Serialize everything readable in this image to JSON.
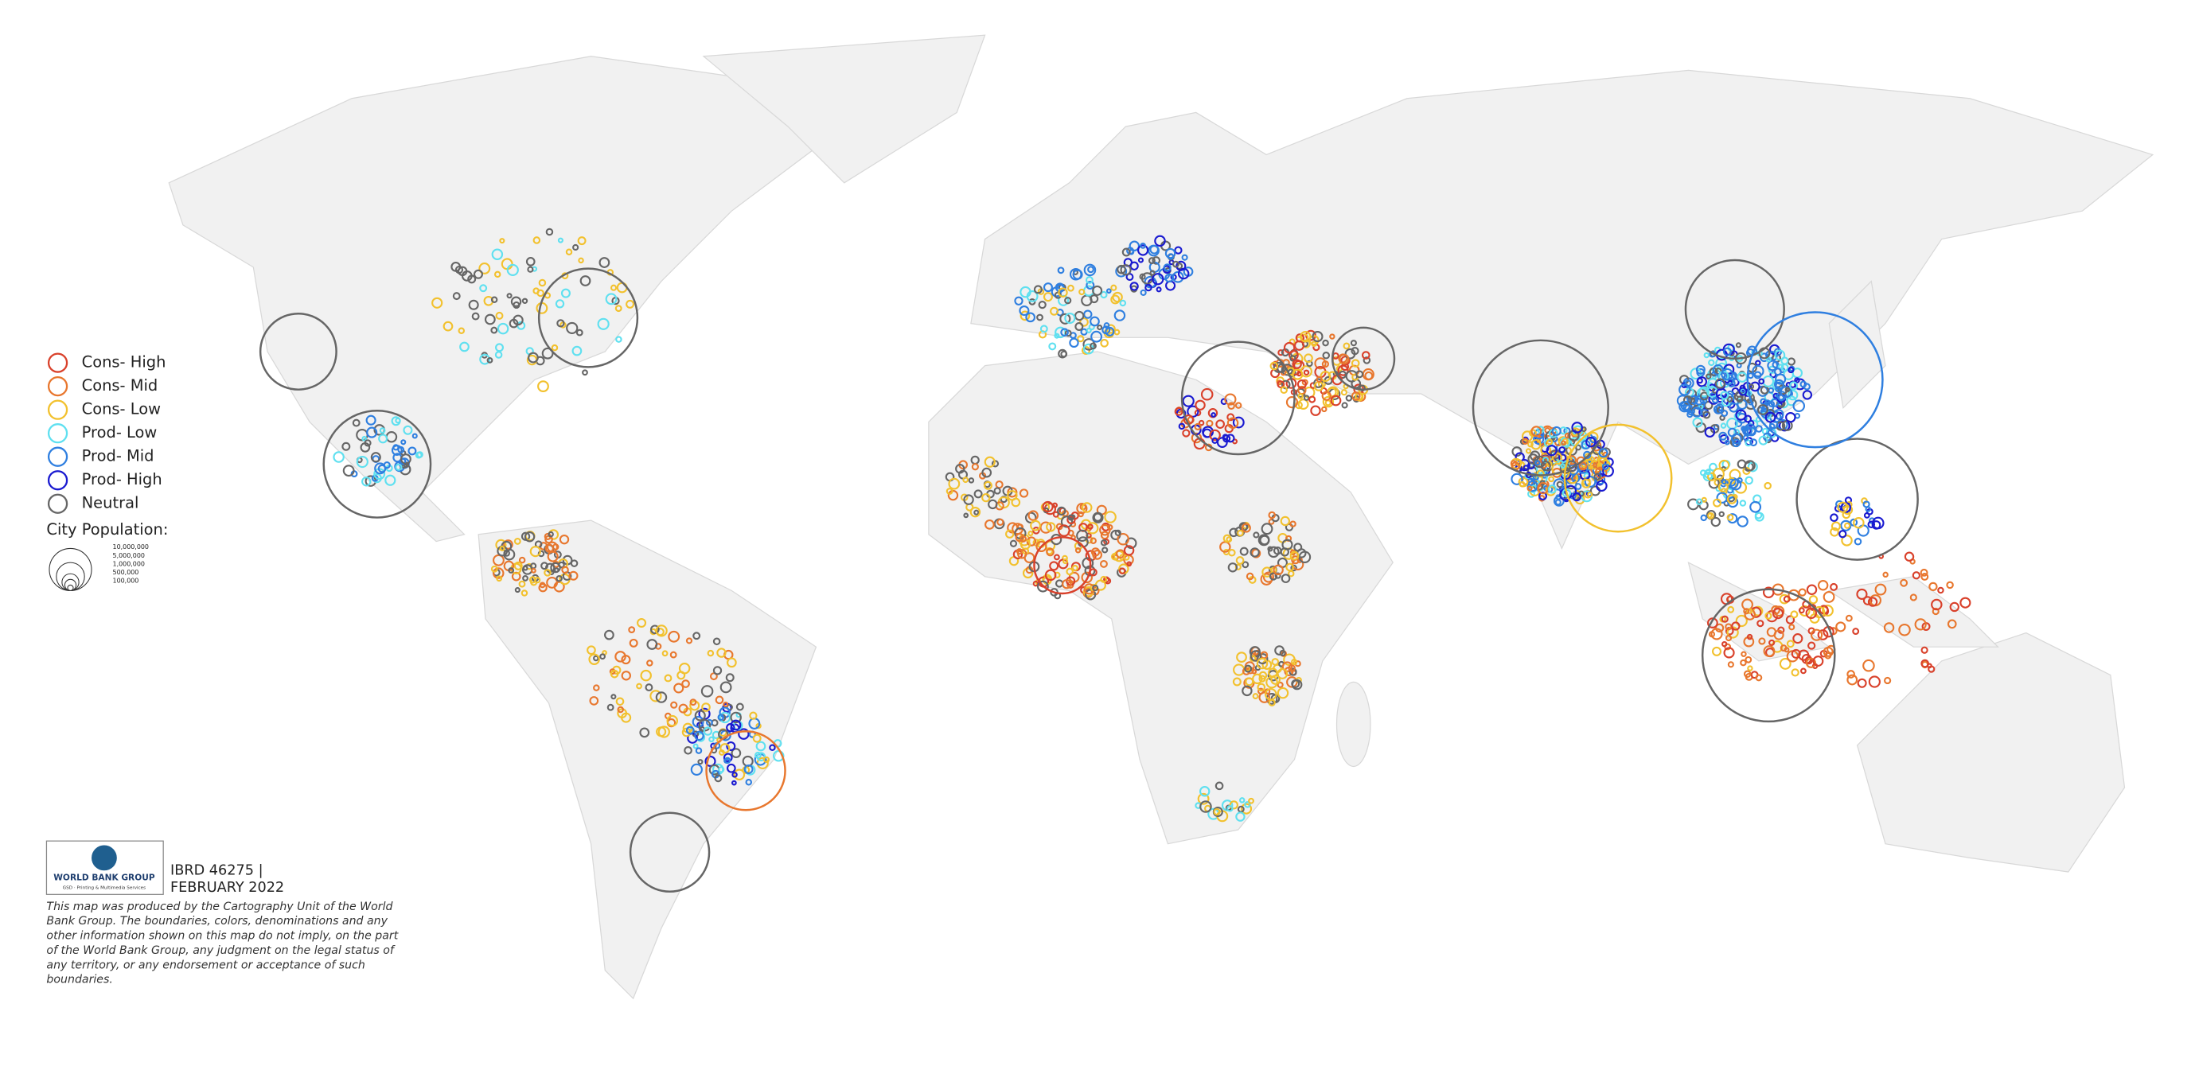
{
  "legend": {
    "items": [
      {
        "label": "Cons- High",
        "color": "#d9412b"
      },
      {
        "label": "Cons- Mid",
        "color": "#e8772e"
      },
      {
        "label": "Cons- Low",
        "color": "#f2c12e"
      },
      {
        "label": "Prod- Low",
        "color": "#5fe0f0"
      },
      {
        "label": "Prod- Mid",
        "color": "#2f7fe0"
      },
      {
        "label": "Prod- High",
        "color": "#1a1ad0"
      },
      {
        "label": "Neutral",
        "color": "#666666"
      }
    ],
    "size_title": "City Population:",
    "sizes": [
      "10,000,000",
      "5,000,000",
      "1,000,000",
      "500,000",
      "100,000"
    ]
  },
  "logo": {
    "name": "WORLD BANK GROUP",
    "subtitle": "GSD · Printing & Multimedia Services"
  },
  "map_id": "IBRD 46275 |",
  "date": "FEBRUARY 2022",
  "disclaimer": [
    "This map was produced by the Cartography Unit of the World",
    "Bank Group. The boundaries, colors, denominations and any",
    "other information shown on this map do not imply, on the part",
    "of the World Bank Group, any judgment on the legal status of",
    "any territory, or any endorsement or acceptance of such",
    "boundaries."
  ]
}
